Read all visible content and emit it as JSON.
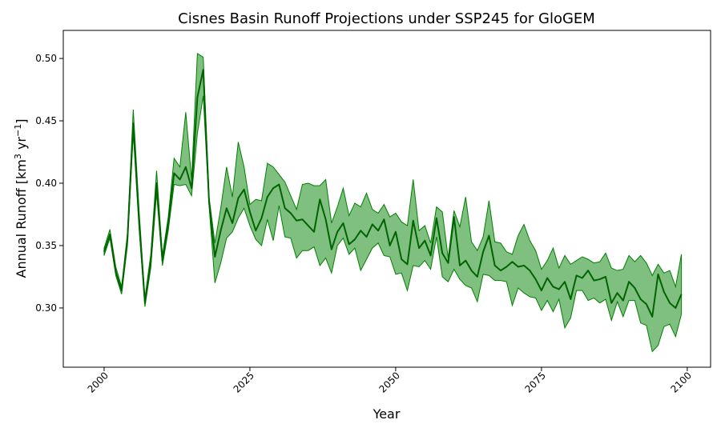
{
  "chart_data": {
    "type": "line",
    "title": "Cisnes Basin Runoff Projections under SSP245 for GloGEM",
    "xlabel": "Year",
    "ylabel": "Annual Runoff [km³ yr⁻¹]",
    "ylabel_parts": {
      "prefix": "Annual Runoff [km",
      "sup1": "3",
      "mid": " yr",
      "sup2": "−1",
      "suffix": "]"
    },
    "xlim": [
      1993,
      2104
    ],
    "ylim": [
      0.2525,
      0.5225
    ],
    "x_ticks": [
      2000,
      2025,
      2050,
      2075,
      2100
    ],
    "x_tick_rotation": 45,
    "y_ticks": [
      0.3,
      0.35,
      0.4,
      0.45,
      0.5
    ],
    "y_tick_labels": [
      "0.30",
      "0.35",
      "0.40",
      "0.45",
      "0.50"
    ],
    "grid": false,
    "colors": {
      "line": "#006400",
      "band": "#008000",
      "band_opacity": 0.5
    },
    "series": [
      {
        "role": "mean",
        "x": [
          2000,
          2001,
          2002,
          2003,
          2004,
          2005,
          2006,
          2007,
          2008,
          2009,
          2010,
          2011,
          2012,
          2013,
          2014,
          2015,
          2016,
          2017,
          2018,
          2019,
          2020,
          2021,
          2022,
          2023,
          2024,
          2025,
          2026,
          2027,
          2028,
          2029,
          2030,
          2031,
          2032,
          2033,
          2034,
          2035,
          2036,
          2037,
          2038,
          2039,
          2040,
          2041,
          2042,
          2043,
          2044,
          2045,
          2046,
          2047,
          2048,
          2049,
          2050,
          2051,
          2052,
          2053,
          2054,
          2055,
          2056,
          2057,
          2058,
          2059,
          2060,
          2061,
          2062,
          2063,
          2064,
          2065,
          2066,
          2067,
          2068,
          2069,
          2070,
          2071,
          2072,
          2073,
          2074,
          2075,
          2076,
          2077,
          2078,
          2079,
          2080,
          2081,
          2082,
          2083,
          2084,
          2085,
          2086,
          2087,
          2088,
          2089,
          2090,
          2091,
          2092,
          2093,
          2094,
          2095,
          2096,
          2097,
          2098,
          2099
        ],
        "values": [
          0.345,
          0.359,
          0.329,
          0.314,
          0.355,
          0.448,
          0.37,
          0.304,
          0.337,
          0.4,
          0.338,
          0.368,
          0.408,
          0.403,
          0.413,
          0.396,
          0.469,
          0.491,
          0.385,
          0.341,
          0.362,
          0.38,
          0.368,
          0.388,
          0.395,
          0.377,
          0.362,
          0.372,
          0.389,
          0.396,
          0.399,
          0.38,
          0.376,
          0.37,
          0.371,
          0.366,
          0.361,
          0.387,
          0.371,
          0.347,
          0.361,
          0.368,
          0.351,
          0.355,
          0.362,
          0.357,
          0.367,
          0.362,
          0.371,
          0.35,
          0.361,
          0.339,
          0.335,
          0.37,
          0.348,
          0.354,
          0.342,
          0.372,
          0.344,
          0.336,
          0.373,
          0.334,
          0.338,
          0.33,
          0.325,
          0.345,
          0.358,
          0.334,
          0.33,
          0.333,
          0.337,
          0.333,
          0.334,
          0.33,
          0.323,
          0.314,
          0.324,
          0.317,
          0.315,
          0.321,
          0.307,
          0.326,
          0.324,
          0.33,
          0.322,
          0.323,
          0.325,
          0.304,
          0.312,
          0.306,
          0.321,
          0.316,
          0.307,
          0.303,
          0.293,
          0.327,
          0.313,
          0.304,
          0.3,
          0.311
        ]
      },
      {
        "role": "band",
        "x": [
          2000,
          2001,
          2002,
          2003,
          2004,
          2005,
          2006,
          2007,
          2008,
          2009,
          2010,
          2011,
          2012,
          2013,
          2014,
          2015,
          2016,
          2017,
          2018,
          2019,
          2020,
          2021,
          2022,
          2023,
          2024,
          2025,
          2026,
          2027,
          2028,
          2029,
          2030,
          2031,
          2032,
          2033,
          2034,
          2035,
          2036,
          2037,
          2038,
          2039,
          2040,
          2041,
          2042,
          2043,
          2044,
          2045,
          2046,
          2047,
          2048,
          2049,
          2050,
          2051,
          2052,
          2053,
          2054,
          2055,
          2056,
          2057,
          2058,
          2059,
          2060,
          2061,
          2062,
          2063,
          2064,
          2065,
          2066,
          2067,
          2068,
          2069,
          2070,
          2071,
          2072,
          2073,
          2074,
          2075,
          2076,
          2077,
          2078,
          2079,
          2080,
          2081,
          2082,
          2083,
          2084,
          2085,
          2086,
          2087,
          2088,
          2089,
          2090,
          2091,
          2092,
          2093,
          2094,
          2095,
          2096,
          2097,
          2098,
          2099
        ],
        "upper": [
          0.348,
          0.363,
          0.333,
          0.317,
          0.36,
          0.459,
          0.378,
          0.308,
          0.343,
          0.41,
          0.342,
          0.373,
          0.42,
          0.413,
          0.457,
          0.403,
          0.504,
          0.501,
          0.389,
          0.352,
          0.38,
          0.413,
          0.389,
          0.433,
          0.413,
          0.383,
          0.387,
          0.386,
          0.416,
          0.413,
          0.407,
          0.401,
          0.39,
          0.379,
          0.399,
          0.4,
          0.398,
          0.398,
          0.403,
          0.368,
          0.381,
          0.396,
          0.374,
          0.384,
          0.381,
          0.392,
          0.379,
          0.376,
          0.383,
          0.373,
          0.376,
          0.369,
          0.366,
          0.403,
          0.362,
          0.366,
          0.352,
          0.381,
          0.377,
          0.34,
          0.378,
          0.365,
          0.389,
          0.353,
          0.346,
          0.357,
          0.386,
          0.353,
          0.352,
          0.345,
          0.343,
          0.358,
          0.367,
          0.354,
          0.346,
          0.331,
          0.338,
          0.348,
          0.332,
          0.342,
          0.335,
          0.338,
          0.341,
          0.339,
          0.336,
          0.337,
          0.344,
          0.332,
          0.33,
          0.331,
          0.342,
          0.337,
          0.342,
          0.336,
          0.326,
          0.335,
          0.328,
          0.33,
          0.317,
          0.343
        ],
        "lower": [
          0.342,
          0.356,
          0.326,
          0.311,
          0.35,
          0.44,
          0.363,
          0.301,
          0.332,
          0.392,
          0.334,
          0.362,
          0.399,
          0.398,
          0.399,
          0.39,
          0.44,
          0.47,
          0.382,
          0.32,
          0.336,
          0.356,
          0.361,
          0.372,
          0.38,
          0.366,
          0.355,
          0.35,
          0.371,
          0.354,
          0.382,
          0.357,
          0.356,
          0.34,
          0.346,
          0.346,
          0.349,
          0.334,
          0.34,
          0.328,
          0.35,
          0.356,
          0.343,
          0.348,
          0.33,
          0.339,
          0.348,
          0.352,
          0.342,
          0.341,
          0.327,
          0.328,
          0.314,
          0.334,
          0.333,
          0.338,
          0.331,
          0.357,
          0.325,
          0.321,
          0.331,
          0.323,
          0.318,
          0.316,
          0.305,
          0.327,
          0.326,
          0.322,
          0.322,
          0.321,
          0.302,
          0.316,
          0.312,
          0.309,
          0.308,
          0.298,
          0.306,
          0.297,
          0.307,
          0.284,
          0.292,
          0.314,
          0.314,
          0.306,
          0.308,
          0.304,
          0.307,
          0.29,
          0.305,
          0.293,
          0.306,
          0.306,
          0.288,
          0.286,
          0.265,
          0.27,
          0.285,
          0.287,
          0.277,
          0.295
        ]
      }
    ]
  }
}
